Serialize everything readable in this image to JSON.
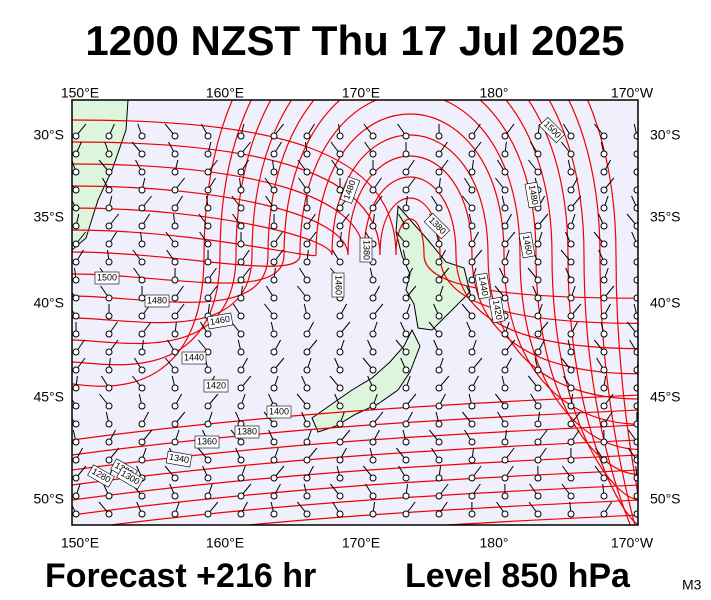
{
  "header": {
    "title": "1200 NZST Thu 17 Jul 2025"
  },
  "axes": {
    "lon_labels": [
      "150°E",
      "160°E",
      "170°E",
      "180°",
      "170°W"
    ],
    "lat_labels": [
      "30°S",
      "35°S",
      "40°S",
      "45°S",
      "50°S"
    ]
  },
  "contour_labels": [
    "1500",
    "1480",
    "1460",
    "1440",
    "1420",
    "1400",
    "1380",
    "1360",
    "1340",
    "1320",
    "1300",
    "1280",
    "1480",
    "1380",
    "1460",
    "1380",
    "1440",
    "1420",
    "1460",
    "1480",
    "1500"
  ],
  "footer": {
    "forecast": "Forecast +216 hr",
    "level": "Level 850 hPa",
    "model": "M3"
  }
}
